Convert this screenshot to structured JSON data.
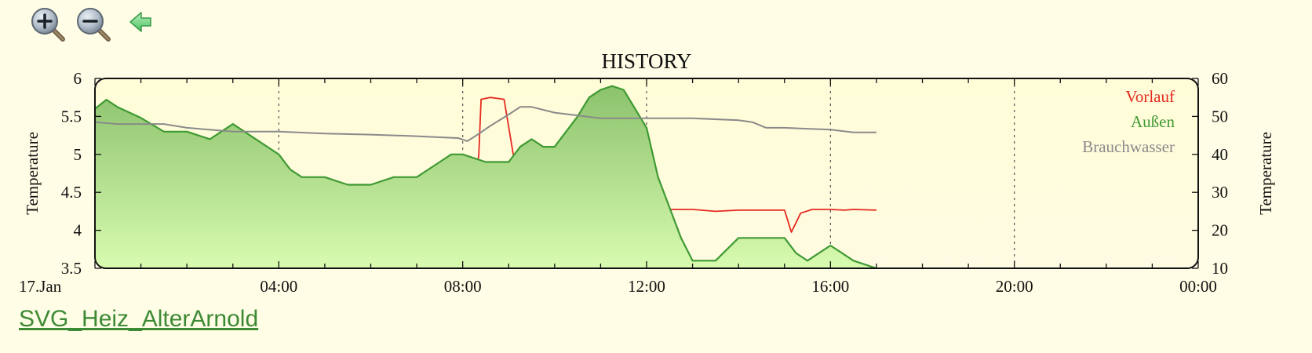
{
  "toolbar": {
    "zoom_in_icon": "zoom-in-icon",
    "zoom_out_icon": "zoom-out-icon",
    "back_icon": "back-arrow-icon"
  },
  "link": {
    "label": "SVG_Heiz_AlterArnold"
  },
  "colors": {
    "background": "#fffde6",
    "plot_top": "#fffcd8",
    "vorlauf": "#e52a20",
    "aussen": "#3f9a33",
    "brauchwasser": "#8a8a8a",
    "link": "#3d8a35"
  },
  "chart_data": {
    "type": "line",
    "title": "HISTORY",
    "ylabel": "Temperature",
    "y2label": "Temperature",
    "xlim": [
      0,
      24
    ],
    "ylim": [
      3.5,
      6
    ],
    "y2lim": [
      10,
      60
    ],
    "yticks": [
      "3.5",
      "4",
      "4.5",
      "5",
      "5.5",
      "6"
    ],
    "y2ticks": [
      "10",
      "20",
      "30",
      "40",
      "50",
      "60"
    ],
    "xticks": [
      {
        "x": 0,
        "label": "17.Jan"
      },
      {
        "x": 4,
        "label": "04:00"
      },
      {
        "x": 8,
        "label": "08:00"
      },
      {
        "x": 12,
        "label": "12:00"
      },
      {
        "x": 16,
        "label": "16:00"
      },
      {
        "x": 20,
        "label": "20:00"
      },
      {
        "x": 24,
        "label": "00:00"
      }
    ],
    "grid": "vertical-dotted",
    "legend_position": "top-right",
    "series": [
      {
        "name": "Vorlauf",
        "axis": "right",
        "style": "line",
        "x": [
          0,
          0.25,
          0.5,
          1,
          2,
          3,
          4,
          4.25,
          4.5,
          5,
          5.5,
          6,
          6.5,
          7,
          7.5,
          7.75,
          8,
          8.25,
          8.35,
          8.4,
          8.6,
          8.9,
          9.1,
          9.25,
          9.5,
          9.75,
          10,
          10.5,
          11,
          11.5,
          12,
          12.5,
          13,
          13.5,
          14,
          14.5,
          15,
          15.15,
          15.35,
          15.6,
          16,
          16.3,
          16.5,
          17
        ],
        "y": [
          27.5,
          28.5,
          28,
          28,
          28,
          28,
          28,
          28,
          28.3,
          28.3,
          28,
          28.2,
          28,
          28,
          28,
          28.3,
          28,
          29.7,
          40,
          54.5,
          55,
          54.5,
          40,
          30.5,
          24.5,
          27,
          26.5,
          26.5,
          26,
          26,
          25.5,
          25.5,
          25.5,
          25,
          25.3,
          25.3,
          25.3,
          19.5,
          24.5,
          25.5,
          25.5,
          25.3,
          25.5,
          25.3
        ]
      },
      {
        "name": "Außen",
        "axis": "left",
        "style": "area",
        "x": [
          0,
          0.25,
          0.5,
          1,
          1.5,
          2,
          2.5,
          3,
          3.5,
          4,
          4.25,
          4.5,
          5,
          5.5,
          6,
          6.5,
          7,
          7.5,
          7.75,
          8,
          8.5,
          9,
          9.25,
          9.5,
          9.75,
          10,
          10.5,
          10.75,
          11,
          11.25,
          11.5,
          11.75,
          12,
          12.25,
          12.5,
          12.75,
          13,
          13.25,
          13.5,
          14,
          14.5,
          15,
          15.25,
          15.5,
          15.75,
          16,
          16.25,
          16.5,
          17
        ],
        "y": [
          5.6,
          5.72,
          5.62,
          5.48,
          5.3,
          5.3,
          5.2,
          5.4,
          5.2,
          5.0,
          4.8,
          4.7,
          4.7,
          4.6,
          4.6,
          4.7,
          4.7,
          4.9,
          5.0,
          5.0,
          4.9,
          4.9,
          5.1,
          5.2,
          5.1,
          5.1,
          5.5,
          5.75,
          5.85,
          5.9,
          5.85,
          5.6,
          5.35,
          4.7,
          4.3,
          3.9,
          3.6,
          3.6,
          3.6,
          3.9,
          3.9,
          3.9,
          3.7,
          3.6,
          3.7,
          3.8,
          3.7,
          3.6,
          3.5
        ]
      },
      {
        "name": "Brauchwasser",
        "axis": "right",
        "style": "line",
        "x": [
          0,
          0.5,
          1,
          1.5,
          2,
          3,
          4,
          5,
          6,
          7,
          7.5,
          7.9,
          8.1,
          8.3,
          8.6,
          9,
          9.25,
          9.5,
          10,
          11,
          12,
          13,
          14,
          14.3,
          14.6,
          15,
          16,
          16.5,
          17
        ],
        "y": [
          48.5,
          48,
          48,
          48,
          47,
          46,
          46,
          45.5,
          45.2,
          44.8,
          44.5,
          44.3,
          43.5,
          45,
          47.5,
          50.5,
          52.5,
          52.5,
          51,
          49.5,
          49.5,
          49.5,
          49,
          48.5,
          47,
          47,
          46.5,
          45.8,
          45.8
        ]
      }
    ]
  }
}
